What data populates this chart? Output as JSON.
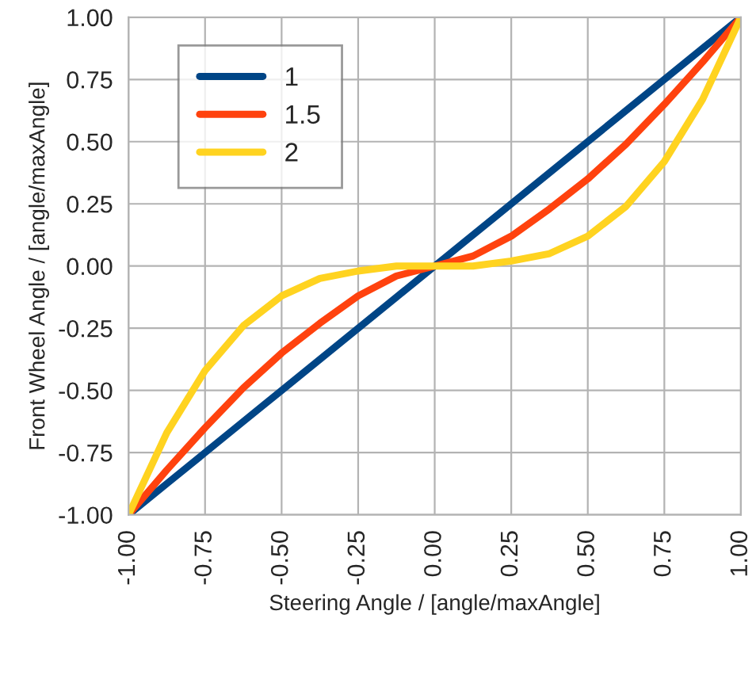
{
  "chart_data": {
    "type": "line",
    "xlabel": "Steering Angle / [angle/maxAngle]",
    "ylabel": "Front Wheel Angle / [angle/maxAngle]",
    "x": [
      -1,
      -0.875,
      -0.75,
      -0.625,
      -0.5,
      -0.375,
      -0.25,
      -0.125,
      0,
      0.125,
      0.25,
      0.375,
      0.5,
      0.625,
      0.75,
      0.875,
      1
    ],
    "series": [
      {
        "name": "1",
        "color": "#004586",
        "values": [
          -1,
          -0.875,
          -0.75,
          -0.625,
          -0.5,
          -0.375,
          -0.25,
          -0.125,
          0,
          0.125,
          0.25,
          0.375,
          0.5,
          0.625,
          0.75,
          0.875,
          1
        ]
      },
      {
        "name": "1.5",
        "color": "#ff420e",
        "values": [
          -1,
          -0.82,
          -0.65,
          -0.49,
          -0.35,
          -0.23,
          -0.12,
          -0.04,
          0,
          0.04,
          0.12,
          0.23,
          0.35,
          0.49,
          0.65,
          0.82,
          1
        ]
      },
      {
        "name": "2",
        "color": "#ffd320",
        "values": [
          -1,
          -0.67,
          -0.42,
          -0.24,
          -0.12,
          -0.05,
          -0.02,
          0,
          0,
          0,
          0.02,
          0.05,
          0.12,
          0.24,
          0.42,
          0.67,
          1
        ]
      }
    ],
    "xlim": [
      -1,
      1
    ],
    "ylim": [
      -1,
      1
    ],
    "xticks": [
      {
        "value": -1,
        "label": "-1.00"
      },
      {
        "value": -0.75,
        "label": "-0.75"
      },
      {
        "value": -0.5,
        "label": "-0.50"
      },
      {
        "value": -0.25,
        "label": "-0.25"
      },
      {
        "value": 0,
        "label": "0.00"
      },
      {
        "value": 0.25,
        "label": "0.25"
      },
      {
        "value": 0.5,
        "label": "0.50"
      },
      {
        "value": 0.75,
        "label": "0.75"
      },
      {
        "value": 1,
        "label": "1.00"
      }
    ],
    "yticks": [
      {
        "value": -1,
        "label": "-1.00"
      },
      {
        "value": -0.75,
        "label": "-0.75"
      },
      {
        "value": -0.5,
        "label": "-0.50"
      },
      {
        "value": -0.25,
        "label": "-0.25"
      },
      {
        "value": 0,
        "label": "0.00"
      },
      {
        "value": 0.25,
        "label": "0.25"
      },
      {
        "value": 0.5,
        "label": "0.50"
      },
      {
        "value": 0.75,
        "label": "0.75"
      },
      {
        "value": 1,
        "label": "1.00"
      }
    ],
    "grid": true,
    "legend": "top left",
    "marker": "none",
    "line_style": "solid"
  }
}
